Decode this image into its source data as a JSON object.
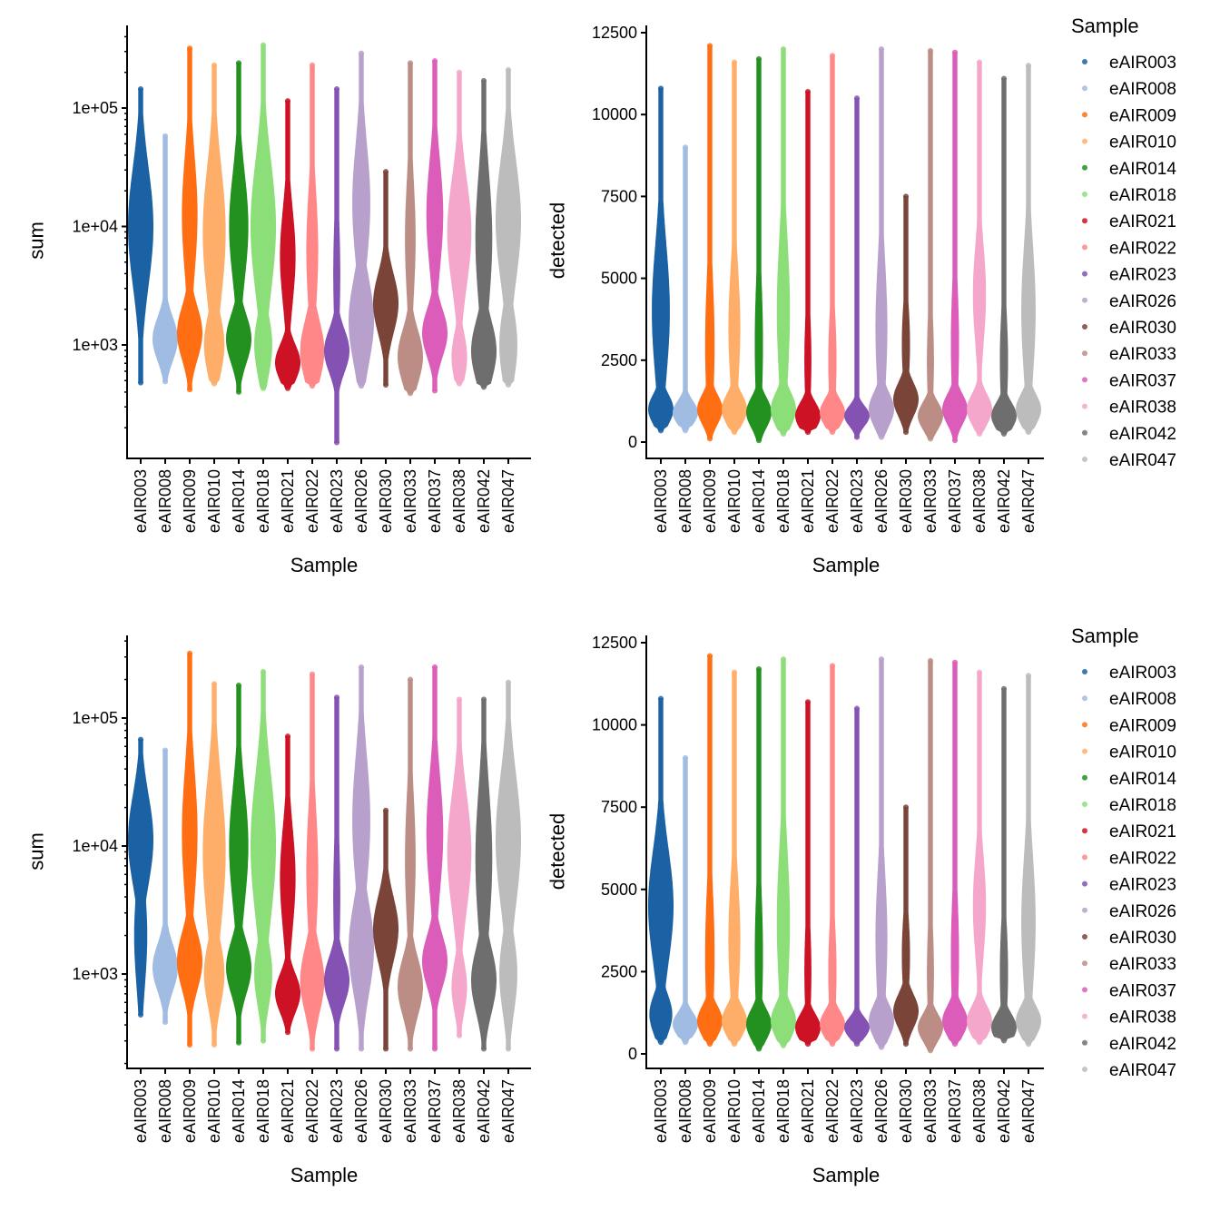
{
  "legend": {
    "title": "Sample"
  },
  "samples": [
    "eAIR003",
    "eAIR008",
    "eAIR009",
    "eAIR010",
    "eAIR014",
    "eAIR018",
    "eAIR021",
    "eAIR022",
    "eAIR023",
    "eAIR026",
    "eAIR030",
    "eAIR033",
    "eAIR037",
    "eAIR038",
    "eAIR042",
    "eAIR047"
  ],
  "colors": [
    "#1b62a5",
    "#a0bce3",
    "#ff6e12",
    "#ffae6a",
    "#23911f",
    "#8cde78",
    "#cc1224",
    "#ff8787",
    "#8452b3",
    "#b8a0cd",
    "#7a4439",
    "#bc8d85",
    "#dc5cb9",
    "#f4a7cb",
    "#6e6e6e",
    "#bcbcbc"
  ],
  "chart_data": [
    {
      "type": "violin",
      "panel": "top-left",
      "xlabel": "Sample",
      "ylabel": "sum",
      "yscale": "log10",
      "yticks": [
        {
          "v": 1000,
          "label": "1e+03"
        },
        {
          "v": 10000,
          "label": "1e+04"
        },
        {
          "v": 100000,
          "label": "1e+05"
        }
      ],
      "series": [
        {
          "min": 480,
          "max": 145000,
          "peaks": [
            [
              4.0,
              1,
              0.5
            ]
          ]
        },
        {
          "min": 490,
          "max": 58000,
          "peaks": [
            [
              3.05,
              1,
              0.18
            ]
          ]
        },
        {
          "min": 420,
          "max": 320000,
          "peaks": [
            [
              3.1,
              1,
              0.22
            ],
            [
              4.1,
              0.6,
              0.5
            ]
          ]
        },
        {
          "min": 470,
          "max": 230000,
          "peaks": [
            [
              3.95,
              0.9,
              0.55
            ],
            [
              3.0,
              0.8,
              0.25
            ]
          ]
        },
        {
          "min": 400,
          "max": 240000,
          "peaks": [
            [
              3.05,
              1,
              0.2
            ],
            [
              4.0,
              0.75,
              0.45
            ]
          ]
        },
        {
          "min": 430,
          "max": 340000,
          "peaks": [
            [
              4.0,
              1,
              0.55
            ],
            [
              3.0,
              0.7,
              0.25
            ]
          ]
        },
        {
          "min": 430,
          "max": 115000,
          "peaks": [
            [
              2.85,
              1,
              0.15
            ],
            [
              3.75,
              0.6,
              0.4
            ]
          ]
        },
        {
          "min": 450,
          "max": 230000,
          "peaks": [
            [
              2.95,
              0.95,
              0.25
            ],
            [
              3.8,
              0.45,
              0.5
            ]
          ]
        },
        {
          "min": 150,
          "max": 145000,
          "peaks": [
            [
              2.95,
              1,
              0.18
            ],
            [
              3.6,
              0.25,
              0.5
            ]
          ]
        },
        {
          "min": 450,
          "max": 290000,
          "peaks": [
            [
              3.2,
              1,
              0.35
            ],
            [
              4.2,
              0.7,
              0.5
            ]
          ]
        },
        {
          "min": 460,
          "max": 29000,
          "peaks": [
            [
              3.35,
              1,
              0.25
            ]
          ]
        },
        {
          "min": 390,
          "max": 240000,
          "peaks": [
            [
              2.9,
              1,
              0.22
            ],
            [
              3.9,
              0.4,
              0.5
            ]
          ]
        },
        {
          "min": 410,
          "max": 250000,
          "peaks": [
            [
              3.1,
              1,
              0.2
            ],
            [
              4.1,
              0.65,
              0.45
            ]
          ]
        },
        {
          "min": 470,
          "max": 200000,
          "peaks": [
            [
              3.95,
              0.95,
              0.45
            ],
            [
              2.9,
              0.6,
              0.2
            ]
          ]
        },
        {
          "min": 440,
          "max": 170000,
          "peaks": [
            [
              2.95,
              1,
              0.25
            ],
            [
              3.9,
              0.65,
              0.55
            ]
          ]
        },
        {
          "min": 460,
          "max": 210000,
          "peaks": [
            [
              4.05,
              1,
              0.5
            ],
            [
              3.0,
              0.7,
              0.3
            ]
          ]
        }
      ]
    },
    {
      "type": "violin",
      "panel": "top-right",
      "xlabel": "Sample",
      "ylabel": "detected",
      "yscale": "linear",
      "ylim": [
        0,
        12500
      ],
      "yticks": [
        {
          "v": 0,
          "label": "0"
        },
        {
          "v": 2500,
          "label": "2500"
        },
        {
          "v": 5000,
          "label": "5000"
        },
        {
          "v": 7500,
          "label": "7500"
        },
        {
          "v": 10000,
          "label": "10000"
        },
        {
          "v": 12500,
          "label": "12500"
        }
      ],
      "series": [
        {
          "min": 350,
          "max": 10800,
          "peaks": [
            [
              1000,
              1,
              450
            ],
            [
              4000,
              0.7,
              2000
            ]
          ]
        },
        {
          "min": 350,
          "max": 9000,
          "peaks": [
            [
              900,
              1,
              350
            ]
          ]
        },
        {
          "min": 100,
          "max": 12100,
          "peaks": [
            [
              1000,
              1,
              450
            ],
            [
              3000,
              0.35,
              2000
            ]
          ]
        },
        {
          "min": 300,
          "max": 11600,
          "peaks": [
            [
              1000,
              1,
              450
            ],
            [
              3500,
              0.45,
              1800
            ]
          ]
        },
        {
          "min": 50,
          "max": 11700,
          "peaks": [
            [
              900,
              1,
              450
            ],
            [
              3000,
              0.3,
              2000
            ]
          ]
        },
        {
          "min": 250,
          "max": 12000,
          "peaks": [
            [
              1000,
              1,
              500
            ],
            [
              4000,
              0.5,
              2200
            ]
          ]
        },
        {
          "min": 300,
          "max": 10700,
          "peaks": [
            [
              800,
              1,
              400
            ],
            [
              2500,
              0.25,
              1500
            ]
          ]
        },
        {
          "min": 300,
          "max": 11800,
          "peaks": [
            [
              900,
              1,
              400
            ],
            [
              2500,
              0.3,
              1500
            ]
          ]
        },
        {
          "min": 150,
          "max": 10500,
          "peaks": [
            [
              800,
              1,
              300
            ]
          ]
        },
        {
          "min": 150,
          "max": 12000,
          "peaks": [
            [
              1000,
              1,
              500
            ],
            [
              3500,
              0.45,
              2000
            ]
          ]
        },
        {
          "min": 300,
          "max": 7500,
          "peaks": [
            [
              1300,
              1,
              500
            ],
            [
              3000,
              0.3,
              1200
            ]
          ]
        },
        {
          "min": 100,
          "max": 11950,
          "peaks": [
            [
              800,
              1,
              400
            ],
            [
              2500,
              0.25,
              1500
            ]
          ]
        },
        {
          "min": 50,
          "max": 11900,
          "peaks": [
            [
              1000,
              1,
              450
            ],
            [
              3000,
              0.3,
              1800
            ]
          ]
        },
        {
          "min": 250,
          "max": 11600,
          "peaks": [
            [
              1000,
              1,
              450
            ],
            [
              4500,
              0.5,
              1500
            ]
          ]
        },
        {
          "min": 250,
          "max": 11100,
          "peaks": [
            [
              800,
              1,
              400
            ],
            [
              2500,
              0.3,
              1500
            ]
          ]
        },
        {
          "min": 300,
          "max": 11500,
          "peaks": [
            [
              1000,
              1,
              450
            ],
            [
              4000,
              0.55,
              2000
            ]
          ]
        }
      ]
    },
    {
      "type": "violin",
      "panel": "bottom-left",
      "xlabel": "Sample",
      "ylabel": "sum",
      "yscale": "log10",
      "yticks": [
        {
          "v": 1000,
          "label": "1e+03"
        },
        {
          "v": 10000,
          "label": "1e+04"
        },
        {
          "v": 100000,
          "label": "1e+05"
        }
      ],
      "series": [
        {
          "min": 480,
          "max": 68000,
          "peaks": [
            [
              4.05,
              1,
              0.35
            ],
            [
              3.3,
              0.5,
              0.4
            ]
          ]
        },
        {
          "min": 420,
          "max": 56000,
          "peaks": [
            [
              3.05,
              1,
              0.18
            ]
          ]
        },
        {
          "min": 280,
          "max": 320000,
          "peaks": [
            [
              3.1,
              1,
              0.22
            ],
            [
              4.1,
              0.6,
              0.5
            ]
          ]
        },
        {
          "min": 280,
          "max": 185000,
          "peaks": [
            [
              3.95,
              0.9,
              0.55
            ],
            [
              3.0,
              0.8,
              0.25
            ]
          ]
        },
        {
          "min": 290,
          "max": 180000,
          "peaks": [
            [
              3.05,
              1,
              0.2
            ],
            [
              4.0,
              0.75,
              0.45
            ]
          ]
        },
        {
          "min": 300,
          "max": 230000,
          "peaks": [
            [
              4.0,
              1,
              0.55
            ],
            [
              3.0,
              0.7,
              0.25
            ]
          ]
        },
        {
          "min": 350,
          "max": 72000,
          "peaks": [
            [
              2.85,
              1,
              0.15
            ],
            [
              3.75,
              0.6,
              0.4
            ]
          ]
        },
        {
          "min": 260,
          "max": 220000,
          "peaks": [
            [
              2.95,
              0.95,
              0.25
            ],
            [
              3.8,
              0.45,
              0.5
            ]
          ]
        },
        {
          "min": 260,
          "max": 145000,
          "peaks": [
            [
              2.95,
              1,
              0.18
            ],
            [
              3.6,
              0.25,
              0.5
            ]
          ]
        },
        {
          "min": 260,
          "max": 250000,
          "peaks": [
            [
              3.2,
              1,
              0.35
            ],
            [
              4.2,
              0.7,
              0.5
            ]
          ]
        },
        {
          "min": 260,
          "max": 19000,
          "peaks": [
            [
              3.35,
              1,
              0.25
            ]
          ]
        },
        {
          "min": 260,
          "max": 200000,
          "peaks": [
            [
              2.9,
              1,
              0.22
            ],
            [
              3.9,
              0.4,
              0.5
            ]
          ]
        },
        {
          "min": 260,
          "max": 250000,
          "peaks": [
            [
              3.1,
              1,
              0.2
            ],
            [
              4.1,
              0.65,
              0.45
            ]
          ]
        },
        {
          "min": 330,
          "max": 140000,
          "peaks": [
            [
              3.95,
              0.95,
              0.45
            ],
            [
              2.9,
              0.6,
              0.2
            ]
          ]
        },
        {
          "min": 260,
          "max": 140000,
          "peaks": [
            [
              2.95,
              1,
              0.25
            ],
            [
              3.9,
              0.65,
              0.55
            ]
          ]
        },
        {
          "min": 260,
          "max": 190000,
          "peaks": [
            [
              4.05,
              1,
              0.5
            ],
            [
              3.0,
              0.7,
              0.3
            ]
          ]
        }
      ]
    },
    {
      "type": "violin",
      "panel": "bottom-right",
      "xlabel": "Sample",
      "ylabel": "detected",
      "yscale": "linear",
      "ylim": [
        0,
        12500
      ],
      "yticks": [
        {
          "v": 0,
          "label": "0"
        },
        {
          "v": 2500,
          "label": "2500"
        },
        {
          "v": 5000,
          "label": "5000"
        },
        {
          "v": 7500,
          "label": "7500"
        },
        {
          "v": 10000,
          "label": "10000"
        },
        {
          "v": 12500,
          "label": "12500"
        }
      ],
      "series": [
        {
          "min": 350,
          "max": 10800,
          "peaks": [
            [
              1200,
              0.9,
              600
            ],
            [
              4500,
              1,
              1700
            ]
          ]
        },
        {
          "min": 350,
          "max": 9000,
          "peaks": [
            [
              900,
              1,
              350
            ]
          ]
        },
        {
          "min": 300,
          "max": 12100,
          "peaks": [
            [
              1000,
              1,
              450
            ],
            [
              3000,
              0.35,
              2000
            ]
          ]
        },
        {
          "min": 300,
          "max": 11600,
          "peaks": [
            [
              1000,
              1,
              450
            ],
            [
              3500,
              0.45,
              1800
            ]
          ]
        },
        {
          "min": 150,
          "max": 11700,
          "peaks": [
            [
              900,
              1,
              450
            ],
            [
              3000,
              0.3,
              2000
            ]
          ]
        },
        {
          "min": 250,
          "max": 12000,
          "peaks": [
            [
              1000,
              1,
              500
            ],
            [
              4000,
              0.5,
              2200
            ]
          ]
        },
        {
          "min": 300,
          "max": 10700,
          "peaks": [
            [
              800,
              1,
              400
            ],
            [
              2500,
              0.25,
              1500
            ]
          ]
        },
        {
          "min": 300,
          "max": 11800,
          "peaks": [
            [
              900,
              1,
              400
            ],
            [
              2500,
              0.3,
              1500
            ]
          ]
        },
        {
          "min": 300,
          "max": 10500,
          "peaks": [
            [
              800,
              1,
              300
            ]
          ]
        },
        {
          "min": 200,
          "max": 12000,
          "peaks": [
            [
              1000,
              1,
              500
            ],
            [
              3500,
              0.45,
              2000
            ]
          ]
        },
        {
          "min": 300,
          "max": 7500,
          "peaks": [
            [
              1300,
              1,
              500
            ],
            [
              3000,
              0.3,
              1200
            ]
          ]
        },
        {
          "min": 100,
          "max": 11950,
          "peaks": [
            [
              800,
              1,
              400
            ],
            [
              2500,
              0.25,
              1500
            ]
          ]
        },
        {
          "min": 300,
          "max": 11900,
          "peaks": [
            [
              1000,
              1,
              450
            ],
            [
              3000,
              0.3,
              1800
            ]
          ]
        },
        {
          "min": 350,
          "max": 11600,
          "peaks": [
            [
              1000,
              1,
              450
            ],
            [
              4500,
              0.5,
              1500
            ]
          ]
        },
        {
          "min": 400,
          "max": 11100,
          "peaks": [
            [
              800,
              1,
              400
            ],
            [
              2500,
              0.3,
              1500
            ]
          ]
        },
        {
          "min": 300,
          "max": 11500,
          "peaks": [
            [
              1000,
              1,
              450
            ],
            [
              4000,
              0.55,
              2000
            ]
          ]
        }
      ]
    }
  ]
}
